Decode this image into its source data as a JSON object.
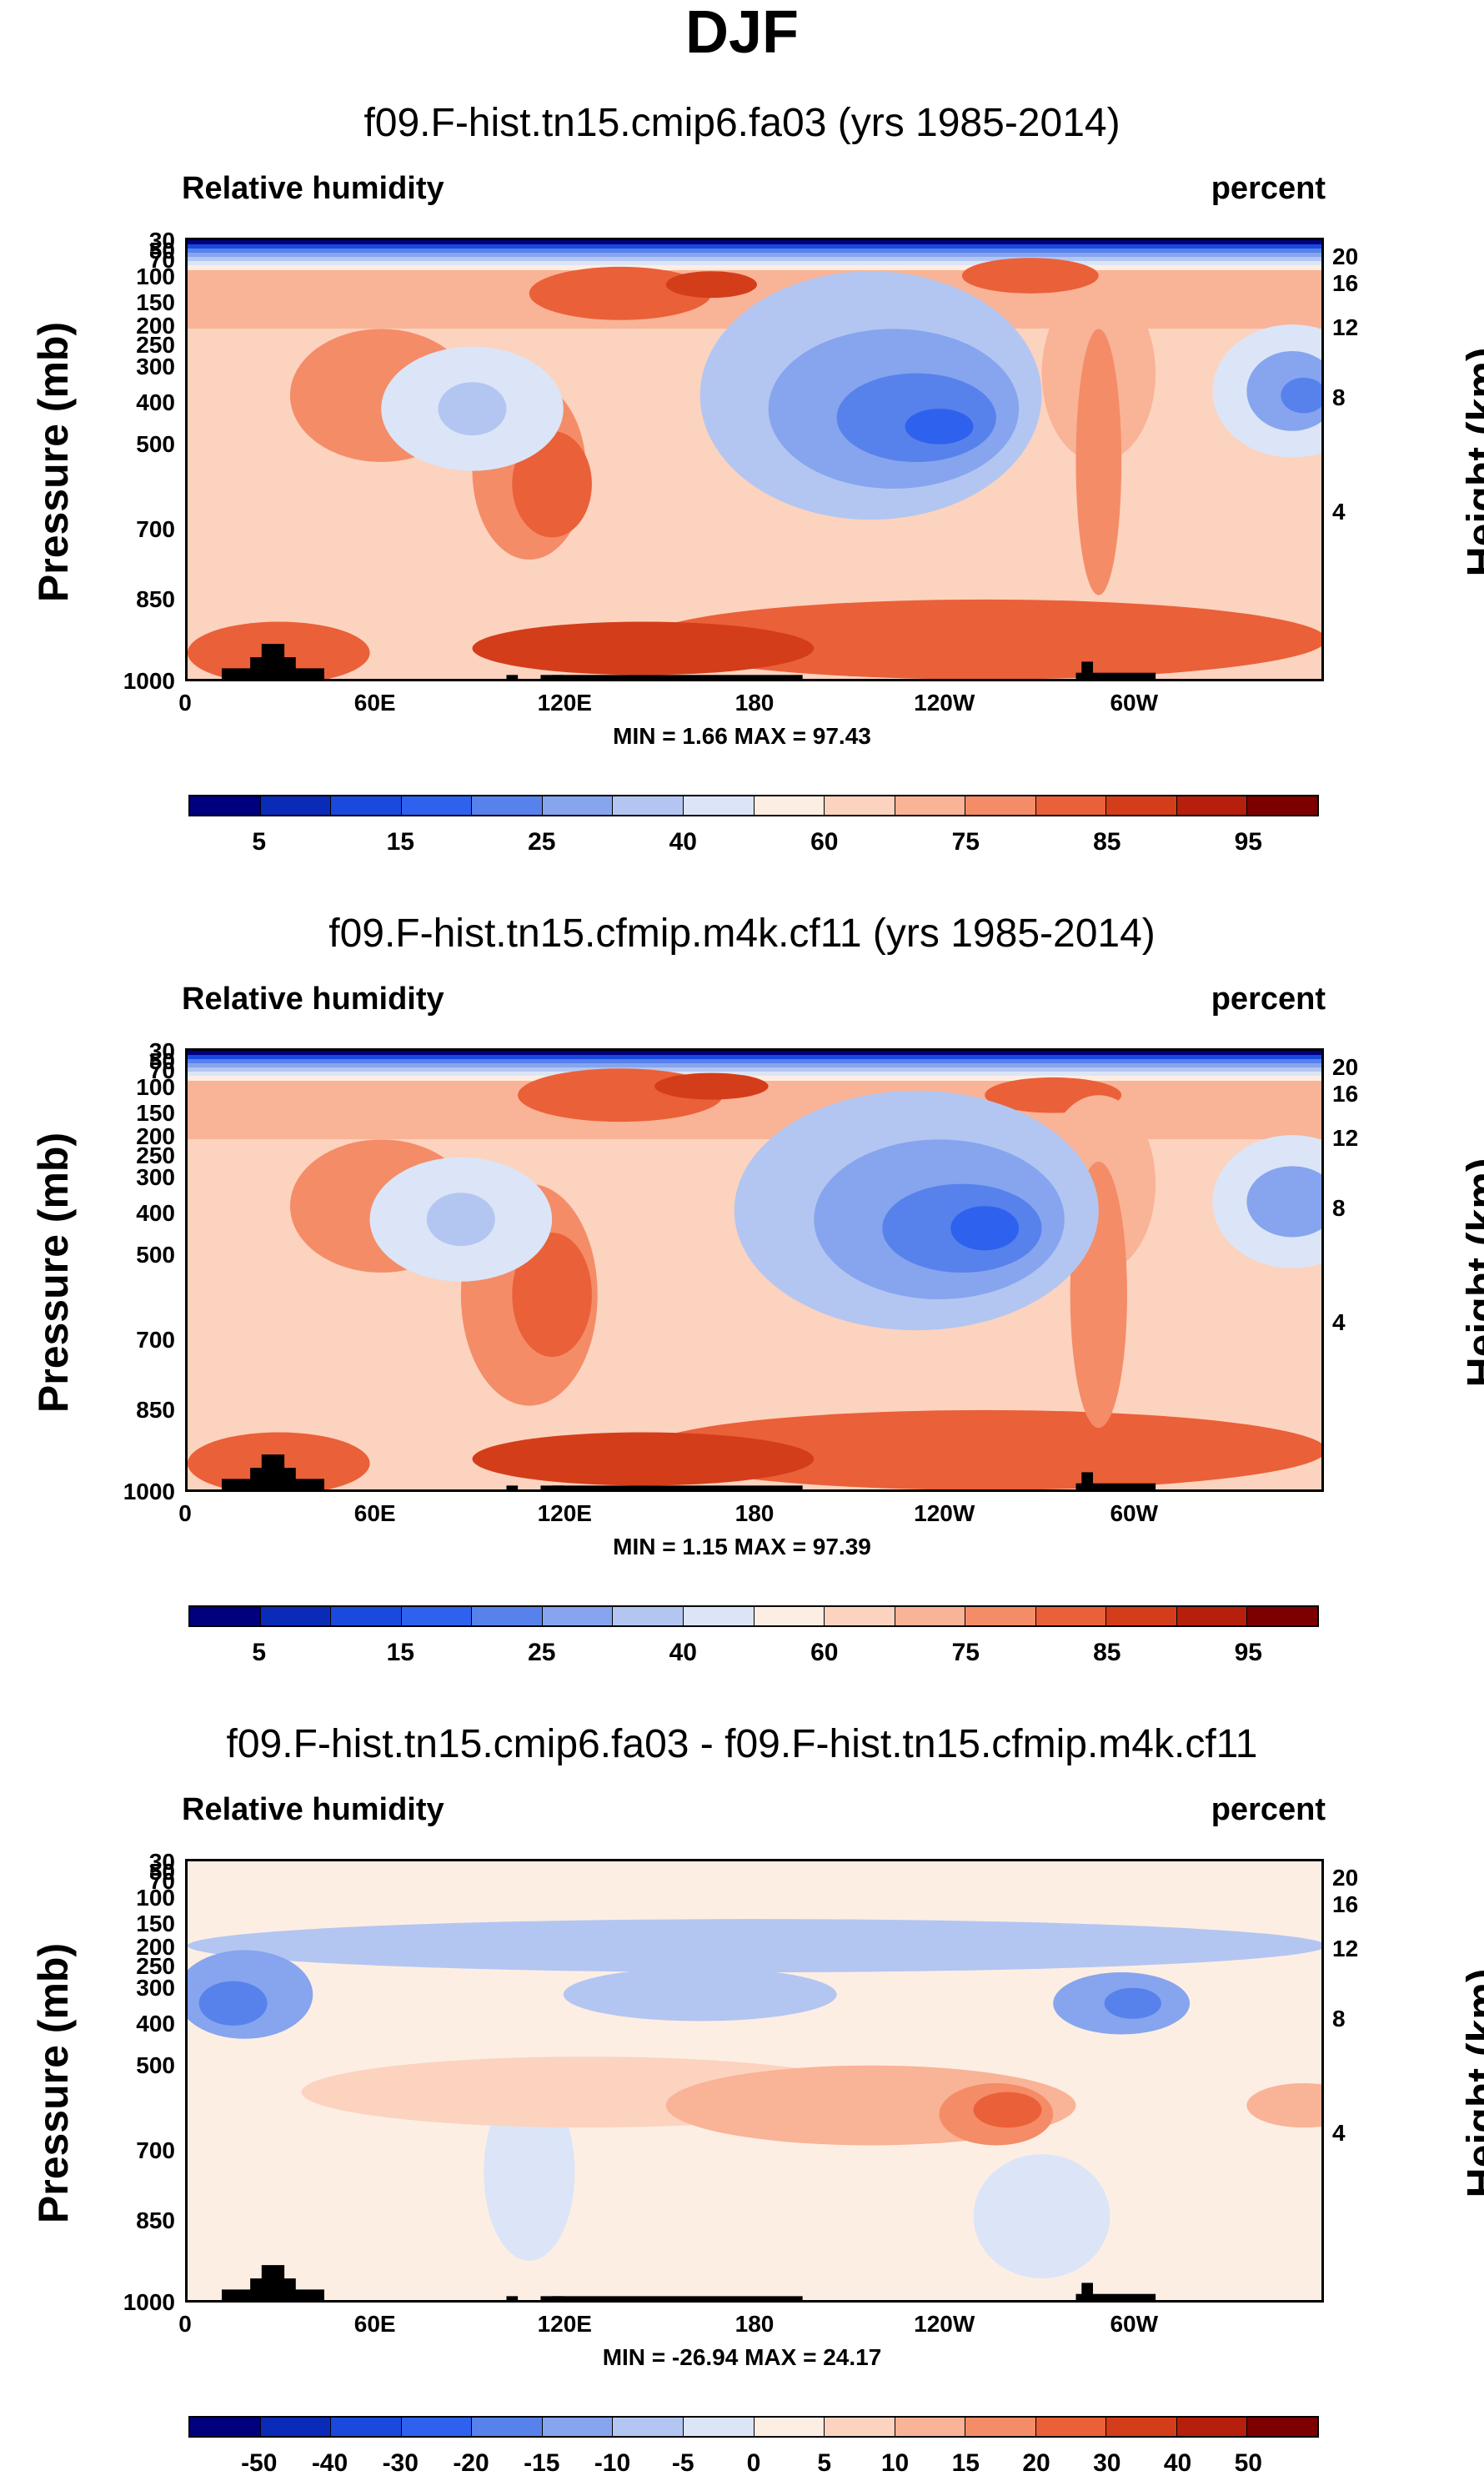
{
  "figure": {
    "season": "DJF"
  },
  "colors": {
    "rh_levels": [
      "#00007f",
      "#0a2ab8",
      "#1a49de",
      "#2e62ee",
      "#5782ec",
      "#86a5ee",
      "#b3c6f1",
      "#dbe5f7",
      "#fdeee4",
      "#fcd3bf",
      "#f9b396",
      "#f48c68",
      "#ea6039",
      "#d43d1a",
      "#b51f0c",
      "#7d0000"
    ],
    "diff_levels": [
      "#00007f",
      "#0a2ab8",
      "#1a49de",
      "#2e62ee",
      "#5782ec",
      "#86a5ee",
      "#b3c6f1",
      "#dbe5f7",
      "#fdeee4",
      "#fcd3bf",
      "#f9b396",
      "#f48c68",
      "#ea6039",
      "#d43d1a",
      "#b51f0c",
      "#7d0000"
    ],
    "terrain": "#000000"
  },
  "chart_data": [
    {
      "type": "contour",
      "title": "f09.F-hist.tn15.cmip6.fa03 (yrs 1985-2014)",
      "left_label": "Relative humidity",
      "right_label": "percent",
      "ylabel": "Pressure (mb)",
      "ylabel_right": "Height (km)",
      "x_ticks": [
        "0",
        "60E",
        "120E",
        "180",
        "120W",
        "60W"
      ],
      "y_ticks": [
        "30",
        "50",
        "70",
        "100",
        "150",
        "200",
        "250",
        "300",
        "400",
        "500",
        "700",
        "850",
        "1000"
      ],
      "z_ticks": [
        "20",
        "16",
        "12",
        "8",
        "4"
      ],
      "stats": "MIN =   1.66  MAX =  97.43",
      "min": 1.66,
      "max": 97.43,
      "colorbar_labels": [
        "5",
        "15",
        "25",
        "40",
        "60",
        "75",
        "85",
        "95"
      ]
    },
    {
      "type": "contour",
      "title": "f09.F-hist.tn15.cfmip.m4k.cf11 (yrs 1985-2014)",
      "left_label": "Relative humidity",
      "right_label": "percent",
      "ylabel": "Pressure (mb)",
      "ylabel_right": "Height (km)",
      "x_ticks": [
        "0",
        "60E",
        "120E",
        "180",
        "120W",
        "60W"
      ],
      "y_ticks": [
        "30",
        "50",
        "70",
        "100",
        "150",
        "200",
        "250",
        "300",
        "400",
        "500",
        "700",
        "850",
        "1000"
      ],
      "z_ticks": [
        "20",
        "16",
        "12",
        "8",
        "4"
      ],
      "stats": "MIN =   1.15  MAX =  97.39",
      "min": 1.15,
      "max": 97.39,
      "colorbar_labels": [
        "5",
        "15",
        "25",
        "40",
        "60",
        "75",
        "85",
        "95"
      ]
    },
    {
      "type": "contour",
      "title": "f09.F-hist.tn15.cmip6.fa03 - f09.F-hist.tn15.cfmip.m4k.cf11",
      "left_label": "Relative humidity",
      "right_label": "percent",
      "ylabel": "Pressure (mb)",
      "ylabel_right": "Height (km)",
      "x_ticks": [
        "0",
        "60E",
        "120E",
        "180",
        "120W",
        "60W"
      ],
      "y_ticks": [
        "30",
        "50",
        "70",
        "100",
        "150",
        "200",
        "250",
        "300",
        "400",
        "500",
        "700",
        "850",
        "1000"
      ],
      "z_ticks": [
        "20",
        "16",
        "12",
        "8",
        "4"
      ],
      "stats": "MIN = -26.94  MAX = 24.17",
      "min": -26.94,
      "max": 24.17,
      "colorbar_labels": [
        "-50",
        "-40",
        "-30",
        "-20",
        "-15",
        "-10",
        "-5",
        "0",
        "5",
        "10",
        "15",
        "20",
        "30",
        "40",
        "50"
      ]
    }
  ]
}
